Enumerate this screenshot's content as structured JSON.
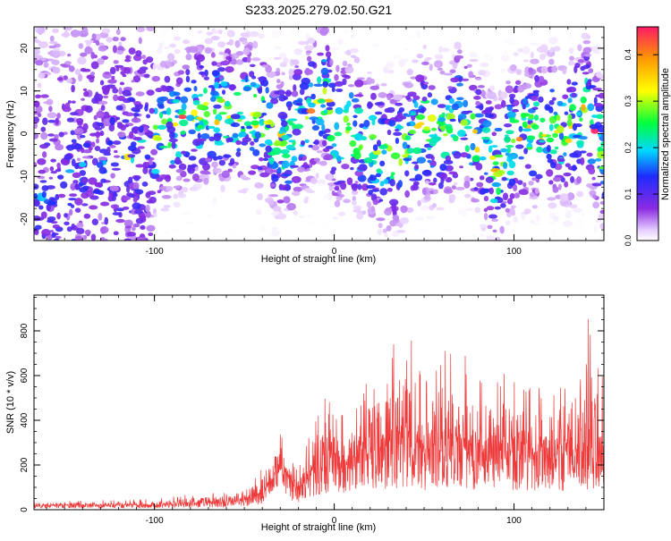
{
  "title": "S233.2025.279.02.50.G21",
  "chart_data": [
    {
      "type": "heatmap",
      "xlabel": "Height of straight line (km)",
      "ylabel": "Frequency (Hz)",
      "xlim": [
        -167,
        150
      ],
      "ylim": [
        -25,
        25
      ],
      "xticks": [
        -100,
        0,
        100
      ],
      "yticks": [
        -20,
        -10,
        0,
        10,
        20
      ],
      "colorbar": {
        "label": "Normalized spectral amplitude",
        "range": [
          0,
          0.46
        ],
        "ticks": [
          0.0,
          0.1,
          0.2,
          0.3,
          0.4
        ]
      },
      "ridge": {
        "x": [
          -167,
          -140,
          -120,
          -100,
          -85,
          -70,
          -50,
          -40,
          -30,
          -25,
          -20,
          -15,
          -10,
          -5,
          0,
          10,
          20,
          30,
          40,
          50,
          60,
          70,
          80,
          90,
          100,
          110,
          120,
          130,
          140,
          150
        ],
        "f": [
          -15,
          -10,
          -6,
          -2,
          3,
          5,
          5,
          3,
          -2,
          -3,
          2,
          3,
          8,
          10,
          0,
          1,
          -3,
          -6,
          -4,
          2,
          -1,
          4,
          -2,
          -9,
          -1,
          0,
          2,
          0,
          6,
          -5
        ]
      }
    },
    {
      "type": "line",
      "xlabel": "Height of straight line (km)",
      "ylabel": "SNR (10 * v/v)",
      "xlim": [
        -167,
        150
      ],
      "ylim": [
        0,
        960
      ],
      "xticks": [
        -100,
        0,
        100
      ],
      "yticks": [
        0,
        200,
        400,
        600,
        800
      ],
      "series": [
        {
          "name": "SNR",
          "color": "#ee3a3a",
          "envelope": {
            "x": [
              -167,
              -100,
              -80,
              -60,
              -45,
              -38,
              -32,
              -28,
              -25,
              -20,
              -15,
              -10,
              -5,
              0,
              10,
              20,
              30,
              40,
              50,
              60,
              70,
              80,
              90,
              100,
              110,
              120,
              130,
              140,
              150
            ],
            "median": [
              18,
              20,
              28,
              30,
              45,
              90,
              150,
              180,
              110,
              80,
              140,
              180,
              210,
              210,
              220,
              250,
              270,
              280,
              250,
              270,
              260,
              250,
              270,
              250,
              240,
              230,
              240,
              250,
              240
            ],
            "peak": [
              40,
              48,
              70,
              80,
              150,
              230,
              330,
              370,
              240,
              180,
              300,
              470,
              540,
              420,
              460,
              600,
              650,
              950,
              600,
              760,
              700,
              660,
              640,
              600,
              580,
              590,
              620,
              960,
              620
            ]
          }
        }
      ]
    }
  ]
}
